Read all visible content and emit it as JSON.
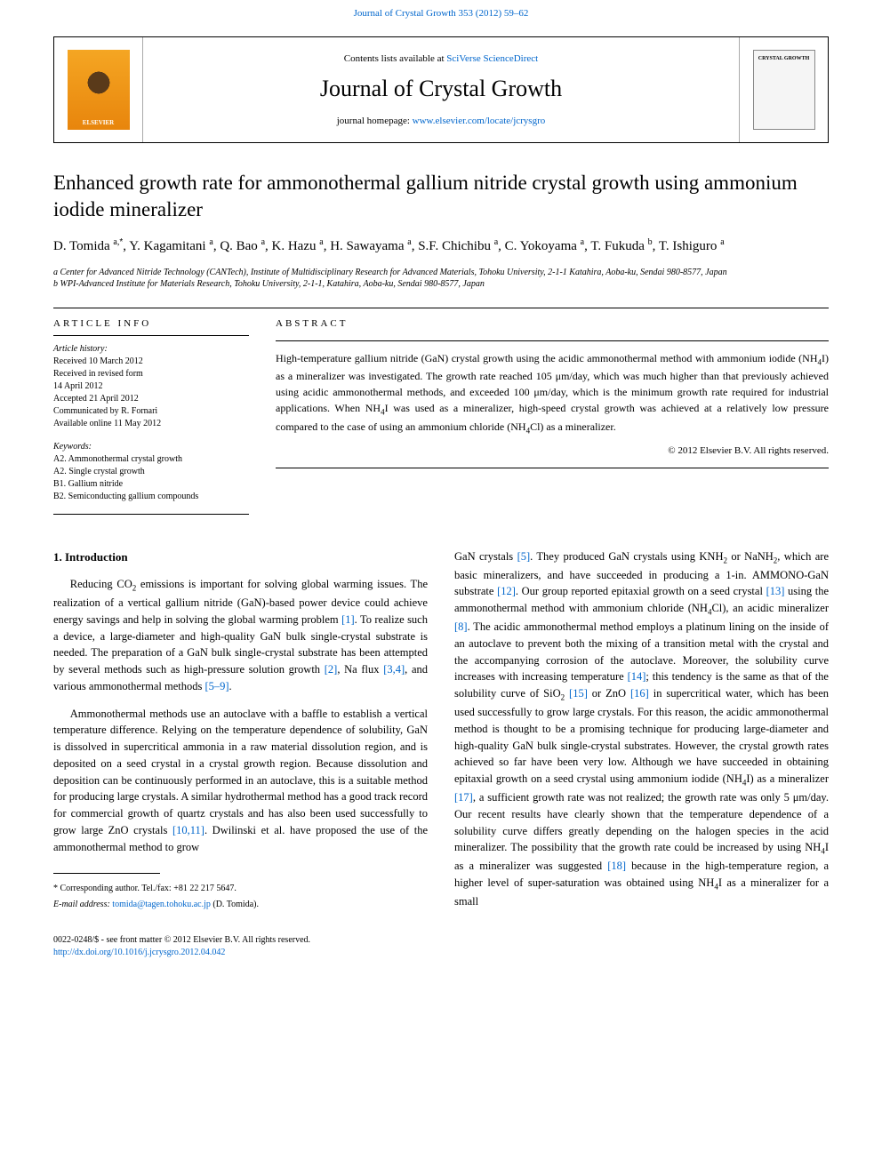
{
  "top_link": "Journal of Crystal Growth 353 (2012) 59–62",
  "header": {
    "contents_prefix": "Contents lists available at ",
    "sciverse": "SciVerse ScienceDirect",
    "journal_name": "Journal of Crystal Growth",
    "homepage_prefix": "journal homepage: ",
    "homepage_url": "www.elsevier.com/locate/jcrysgro",
    "elsevier_text": "ELSEVIER",
    "thumb_text": "CRYSTAL GROWTH"
  },
  "title": "Enhanced growth rate for ammonothermal gallium nitride crystal growth using ammonium iodide mineralizer",
  "authors_html": "D. Tomida <span class='sup'>a,</span><span class='sup symbol'>*</span>, Y. Kagamitani <span class='sup'>a</span>, Q. Bao <span class='sup'>a</span>, K. Hazu <span class='sup'>a</span>, H. Sawayama <span class='sup'>a</span>, S.F. Chichibu <span class='sup'>a</span>, C. Yokoyama <span class='sup'>a</span>, T. Fukuda <span class='sup'>b</span>, T. Ishiguro <span class='sup'>a</span>",
  "affiliations": {
    "a": "a Center for Advanced Nitride Technology (CANTech), Institute of Multidisciplinary Research for Advanced Materials, Tohoku University, 2-1-1 Katahira, Aoba-ku, Sendai 980-8577, Japan",
    "b": "b WPI-Advanced Institute for Materials Research, Tohoku University, 2-1-1, Katahira, Aoba-ku, Sendai 980-8577, Japan"
  },
  "article_info": {
    "heading": "ARTICLE INFO",
    "history_label": "Article history:",
    "history": [
      "Received 10 March 2012",
      "Received in revised form",
      "14 April 2012",
      "Accepted 21 April 2012",
      "Communicated by R. Fornari",
      "Available online 11 May 2012"
    ],
    "keywords_label": "Keywords:",
    "keywords": [
      "A2. Ammonothermal crystal growth",
      "A2. Single crystal growth",
      "B1. Gallium nitride",
      "B2. Semiconducting gallium compounds"
    ]
  },
  "abstract": {
    "heading": "ABSTRACT",
    "text_html": "High-temperature gallium nitride (GaN) crystal growth using the acidic ammonothermal method with ammonium iodide (NH<span class='sub'>4</span>I) as a mineralizer was investigated. The growth rate reached 105 μm/day, which was much higher than that previously achieved using acidic ammonothermal methods, and exceeded 100 μm/day, which is the minimum growth rate required for industrial applications. When NH<span class='sub'>4</span>I was used as a mineralizer, high-speed crystal growth was achieved at a relatively low pressure compared to the case of using an ammonium chloride (NH<span class='sub'>4</span>Cl) as a mineralizer.",
    "copyright": "© 2012 Elsevier B.V. All rights reserved."
  },
  "intro": {
    "heading": "1. Introduction",
    "p1_html": "Reducing CO<span class='sub'>2</span> emissions is important for solving global warming issues. The realization of a vertical gallium nitride (GaN)-based power device could achieve energy savings and help in solving the global warming problem <span class='cite'>[1]</span>. To realize such a device, a large-diameter and high-quality GaN bulk single-crystal substrate is needed. The preparation of a GaN bulk single-crystal substrate has been attempted by several methods such as high-pressure solution growth <span class='cite'>[2]</span>, Na flux <span class='cite'>[3,4]</span>, and various ammonothermal methods <span class='cite'>[5–9]</span>.",
    "p2_html": "Ammonothermal methods use an autoclave with a baffle to establish a vertical temperature difference. Relying on the temperature dependence of solubility, GaN is dissolved in supercritical ammonia in a raw material dissolution region, and is deposited on a seed crystal in a crystal growth region. Because dissolution and deposition can be continuously performed in an autoclave, this is a suitable method for producing large crystals. A similar hydrothermal method has a good track record for commercial growth of quartz crystals and has also been used successfully to grow large ZnO crystals <span class='cite'>[10,11]</span>. Dwilinski et al. have proposed the use of the ammonothermal method to grow",
    "p3_html": "GaN crystals <span class='cite'>[5]</span>. They produced GaN crystals using KNH<span class='sub'>2</span> or NaNH<span class='sub'>2</span>, which are basic mineralizers, and have succeeded in producing a 1-in. AMMONO-GaN substrate <span class='cite'>[12]</span>. Our group reported epitaxial growth on a seed crystal <span class='cite'>[13]</span> using the ammonothermal method with ammonium chloride (NH<span class='sub'>4</span>Cl), an acidic mineralizer <span class='cite'>[8]</span>. The acidic ammonothermal method employs a platinum lining on the inside of an autoclave to prevent both the mixing of a transition metal with the crystal and the accompanying corrosion of the autoclave. Moreover, the solubility curve increases with increasing temperature <span class='cite'>[14]</span>; this tendency is the same as that of the solubility curve of SiO<span class='sub'>2</span> <span class='cite'>[15]</span> or ZnO <span class='cite'>[16]</span> in supercritical water, which has been used successfully to grow large crystals. For this reason, the acidic ammonothermal method is thought to be a promising technique for producing large-diameter and high-quality GaN bulk single-crystal substrates. However, the crystal growth rates achieved so far have been very low. Although we have succeeded in obtaining epitaxial growth on a seed crystal using ammonium iodide (NH<span class='sub'>4</span>I) as a mineralizer <span class='cite'>[17]</span>, a sufficient growth rate was not realized; the growth rate was only 5 μm/day. Our recent results have clearly shown that the temperature dependence of a solubility curve differs greatly depending on the halogen species in the acid mineralizer. The possibility that the growth rate could be increased by using NH<span class='sub'>4</span>I as a mineralizer was suggested <span class='cite'>[18]</span> because in the high-temperature region, a higher level of super-saturation was obtained using NH<span class='sub'>4</span>I as a mineralizer for a small"
  },
  "footnote": {
    "corresp": "* Corresponding author. Tel./fax: +81 22 217 5647.",
    "email_label": "E-mail address: ",
    "email": "tomida@tagen.tohoku.ac.jp",
    "email_suffix": " (D. Tomida)."
  },
  "bottom": {
    "line1": "0022-0248/$ - see front matter © 2012 Elsevier B.V. All rights reserved.",
    "line2": "http://dx.doi.org/10.1016/j.jcrysgro.2012.04.042"
  },
  "colors": {
    "link": "#0066cc",
    "text": "#000000",
    "elsevier_orange": "#e8850c"
  }
}
